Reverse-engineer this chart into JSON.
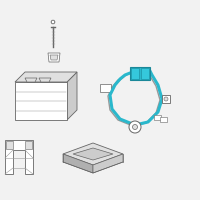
{
  "bg_color": "#f2f2f2",
  "highlight_color": "#2ab8cc",
  "line_color": "#666666",
  "light_line": "#999999",
  "fill_white": "#ffffff",
  "fill_light": "#e0e0e0",
  "fill_mid": "#cccccc",
  "fill_dark": "#b0b0b0"
}
